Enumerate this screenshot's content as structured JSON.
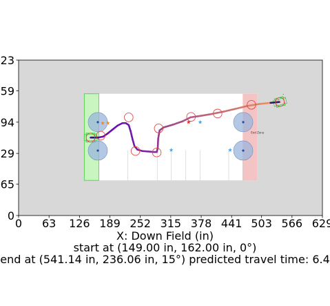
{
  "chart_data": {
    "type": "path-plot",
    "xlabel": "X: Down Field (in)",
    "ylabel": "",
    "xlim": [
      0,
      629
    ],
    "ylim": [
      0,
      323
    ],
    "x_ticks": [
      0,
      63,
      126,
      189,
      252,
      315,
      378,
      441,
      503,
      566,
      629
    ],
    "y_ticks": [
      0,
      65,
      129,
      194,
      259,
      323
    ],
    "grid": false,
    "background_color": "#d8d8d8",
    "field": {
      "x_range": [
        136,
        494
      ],
      "y_range": [
        73,
        253
      ],
      "color": "#ffffff",
      "start_zone": {
        "x_range": [
          136,
          166
        ],
        "color": "#c8f5c0",
        "edge_color": "#44cc44"
      },
      "end_zone": {
        "x_range": [
          464,
          494
        ],
        "color": "#f4c4c4"
      }
    },
    "zone_label": {
      "text": "End Zone",
      "x": 481,
      "y": 170
    },
    "vertical_lines_x": [
      226,
      287,
      316,
      346,
      376,
      435,
      464
    ],
    "blue_circles": [
      {
        "x": 164,
        "y": 194
      },
      {
        "x": 164,
        "y": 135
      },
      {
        "x": 465,
        "y": 194
      },
      {
        "x": 465,
        "y": 135
      }
    ],
    "red_circles": [
      {
        "x": 149,
        "y": 162
      },
      {
        "x": 170,
        "y": 166
      },
      {
        "x": 228,
        "y": 204
      },
      {
        "x": 242,
        "y": 134
      },
      {
        "x": 286,
        "y": 131
      },
      {
        "x": 290,
        "y": 181
      },
      {
        "x": 357,
        "y": 205
      },
      {
        "x": 412,
        "y": 212
      },
      {
        "x": 482,
        "y": 230
      },
      {
        "x": 541,
        "y": 236
      }
    ],
    "stars": [
      {
        "x": 174,
        "y": 192,
        "color": "#ff8800"
      },
      {
        "x": 185,
        "y": 192,
        "color": "#ff8800"
      },
      {
        "x": 352,
        "y": 194,
        "color": "#e03030"
      },
      {
        "x": 376,
        "y": 194,
        "color": "#4aa6e0"
      },
      {
        "x": 316,
        "y": 136,
        "color": "#4aa6e0"
      },
      {
        "x": 438,
        "y": 136,
        "color": "#4aa6e0"
      }
    ],
    "path": [
      [
        149,
        162
      ],
      [
        165,
        162
      ],
      [
        175,
        164
      ],
      [
        185,
        171
      ],
      [
        195,
        179
      ],
      [
        205,
        187
      ],
      [
        215,
        192
      ],
      [
        222,
        192
      ],
      [
        228,
        188
      ],
      [
        232,
        175
      ],
      [
        236,
        158
      ],
      [
        240,
        144
      ],
      [
        246,
        137
      ],
      [
        256,
        134
      ],
      [
        268,
        133
      ],
      [
        280,
        132
      ],
      [
        286,
        132
      ],
      [
        288,
        140
      ],
      [
        289,
        160
      ],
      [
        292,
        177
      ],
      [
        300,
        183
      ],
      [
        320,
        189
      ],
      [
        340,
        196
      ],
      [
        356,
        204
      ],
      [
        376,
        207
      ],
      [
        400,
        211
      ],
      [
        425,
        216
      ],
      [
        450,
        222
      ],
      [
        475,
        228
      ],
      [
        500,
        232
      ],
      [
        520,
        234
      ],
      [
        541,
        236
      ]
    ],
    "start_pose": {
      "x": 149,
      "y": 162,
      "heading_deg": 0
    },
    "end_pose": {
      "x": 541,
      "y": 236,
      "heading_deg": 15
    },
    "path_color_start": "#6a0dad",
    "path_color_end": "#f0965a",
    "robot_color": "#22cc22",
    "captions": [
      "start at (149.00 in, 162.00 in, 0°)",
      "end at (541.14 in, 236.06 in, 15°) predicted travel time: 6.4"
    ]
  }
}
